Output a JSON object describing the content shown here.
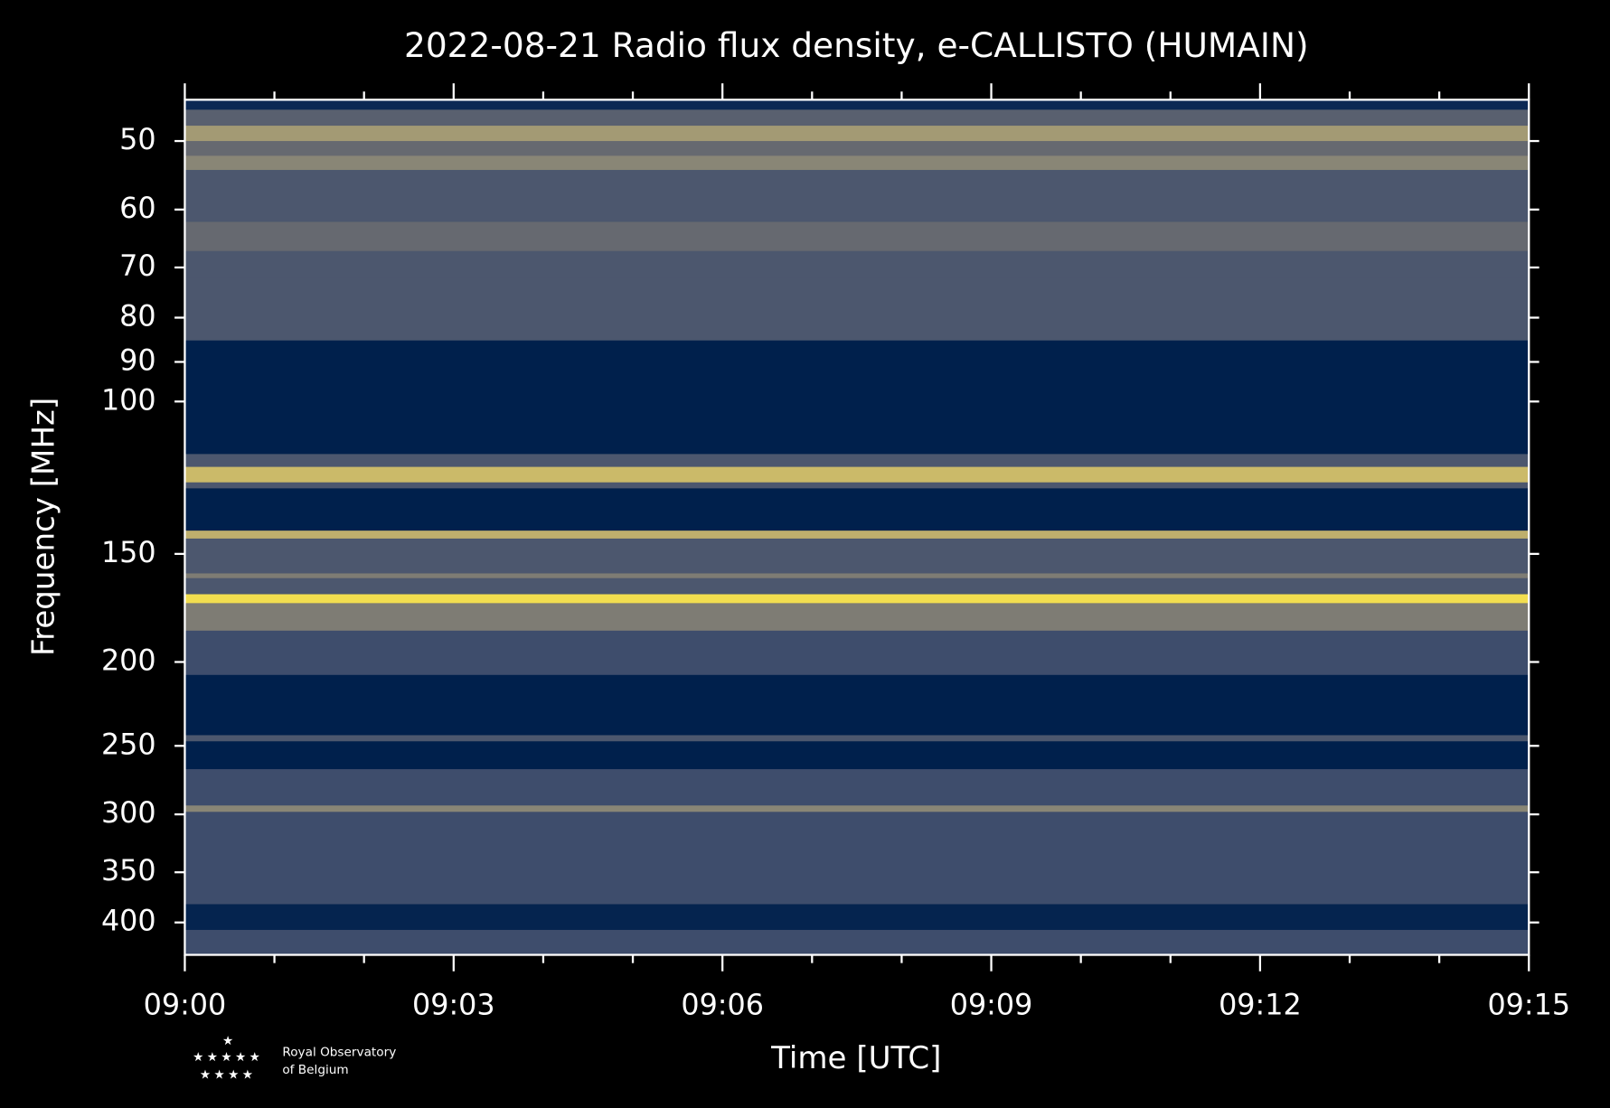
{
  "chart_data": {
    "type": "spectrogram",
    "title": "2022-08-21 Radio flux density, e-CALLISTO (HUMAIN)",
    "x_label": "Time [UTC]",
    "y_label": "Frequency [MHz]",
    "xlim": [
      0,
      15
    ],
    "xticks": [
      {
        "value": 0,
        "label": "09:00"
      },
      {
        "value": 3,
        "label": "09:03"
      },
      {
        "value": 6,
        "label": "09:06"
      },
      {
        "value": 9,
        "label": "09:09"
      },
      {
        "value": 12,
        "label": "09:12"
      },
      {
        "value": 15,
        "label": "09:15"
      }
    ],
    "xminorticks": [
      1,
      2,
      4,
      5,
      7,
      8,
      10,
      11,
      13,
      14
    ],
    "ylim": [
      44.8,
      436
    ],
    "y_log": true,
    "y_inverted": true,
    "yticks": [
      50,
      60,
      70,
      80,
      90,
      100,
      150,
      200,
      250,
      300,
      350,
      400
    ],
    "colormap": [
      "#00204c",
      "#31446b",
      "#666970",
      "#958f78",
      "#cbba69",
      "#ffea46"
    ],
    "bands": [
      {
        "from": 44.8,
        "to": 46,
        "level": 0.05
      },
      {
        "from": 46,
        "to": 48,
        "level": 0.35
      },
      {
        "from": 48,
        "to": 50,
        "level": 0.65
      },
      {
        "from": 50,
        "to": 52,
        "level": 0.4
      },
      {
        "from": 52,
        "to": 54,
        "level": 0.55
      },
      {
        "from": 54,
        "to": 62,
        "level": 0.3
      },
      {
        "from": 62,
        "to": 67,
        "level": 0.4
      },
      {
        "from": 67,
        "to": 72,
        "level": 0.3
      },
      {
        "from": 72,
        "to": 85,
        "level": 0.3
      },
      {
        "from": 85,
        "to": 115,
        "level": 0
      },
      {
        "from": 115,
        "to": 119,
        "level": 0.3
      },
      {
        "from": 119,
        "to": 124,
        "level": 0.8
      },
      {
        "from": 124,
        "to": 126,
        "level": 0.3
      },
      {
        "from": 126,
        "to": 141,
        "level": 0
      },
      {
        "from": 141,
        "to": 144,
        "level": 0.75
      },
      {
        "from": 144,
        "to": 158,
        "level": 0.3
      },
      {
        "from": 158,
        "to": 160,
        "level": 0.5
      },
      {
        "from": 160,
        "to": 167,
        "level": 0.3
      },
      {
        "from": 167,
        "to": 171,
        "level": 0.95
      },
      {
        "from": 171,
        "to": 184,
        "level": 0.5
      },
      {
        "from": 184,
        "to": 207,
        "level": 0.25
      },
      {
        "from": 207,
        "to": 243,
        "level": 0
      },
      {
        "from": 243,
        "to": 247,
        "level": 0.3
      },
      {
        "from": 247,
        "to": 266,
        "level": 0
      },
      {
        "from": 266,
        "to": 293,
        "level": 0.25
      },
      {
        "from": 293,
        "to": 298,
        "level": 0.55
      },
      {
        "from": 298,
        "to": 381,
        "level": 0.25
      },
      {
        "from": 381,
        "to": 408,
        "level": 0.02
      },
      {
        "from": 408,
        "to": 436,
        "level": 0.25
      }
    ]
  },
  "logo": [
    "Royal Observatory",
    "of Belgium"
  ]
}
